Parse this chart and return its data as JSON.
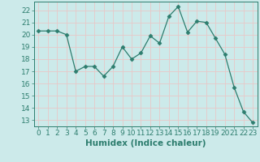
{
  "x": [
    0,
    1,
    2,
    3,
    4,
    5,
    6,
    7,
    8,
    9,
    10,
    11,
    12,
    13,
    14,
    15,
    16,
    17,
    18,
    19,
    20,
    21,
    22,
    23
  ],
  "y": [
    20.3,
    20.3,
    20.3,
    20.0,
    17.0,
    17.4,
    17.4,
    16.6,
    17.4,
    19.0,
    18.0,
    18.5,
    19.9,
    19.3,
    21.5,
    22.3,
    20.2,
    21.1,
    21.0,
    19.7,
    18.4,
    15.7,
    13.7,
    12.8
  ],
  "line_color": "#2d7d6e",
  "marker": "D",
  "marker_size": 2.5,
  "bg_color": "#cceaea",
  "grid_color": "#e8c8c8",
  "xlabel": "Humidex (Indice chaleur)",
  "ylim": [
    12.5,
    22.7
  ],
  "xlim": [
    -0.5,
    23.5
  ],
  "yticks": [
    13,
    14,
    15,
    16,
    17,
    18,
    19,
    20,
    21,
    22
  ],
  "xticks": [
    0,
    1,
    2,
    3,
    4,
    5,
    6,
    7,
    8,
    9,
    10,
    11,
    12,
    13,
    14,
    15,
    16,
    17,
    18,
    19,
    20,
    21,
    22,
    23
  ],
  "tick_color": "#2d7d6e",
  "label_color": "#2d7d6e",
  "font_size_xlabel": 7.5,
  "font_size_tick": 6.5
}
